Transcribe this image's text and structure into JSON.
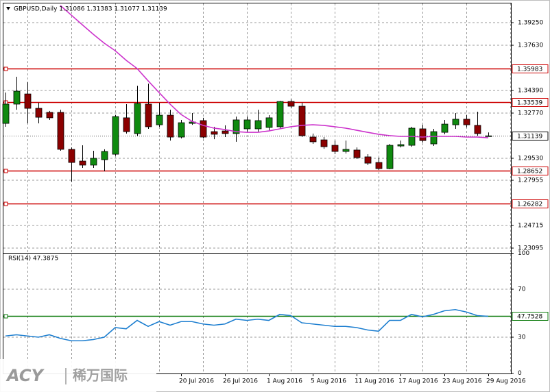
{
  "logo": {
    "brand": "ACY",
    "name": "稀万国际"
  },
  "chart_data": [
    {
      "type": "candlestick",
      "title": "GBPUSD,Daily  1.31086 1.31383 1.31077 1.31139",
      "categories": [
        null,
        null,
        null,
        null,
        null,
        null,
        null,
        null,
        null,
        null,
        null,
        null,
        null,
        null,
        null,
        null,
        "20 Jul 2016",
        null,
        null,
        null,
        "26 Jul 2016",
        null,
        null,
        null,
        "1 Aug 2016",
        null,
        null,
        null,
        "5 Aug 2016",
        null,
        null,
        null,
        "11 Aug 2016",
        null,
        null,
        null,
        "17 Aug 2016",
        null,
        null,
        null,
        "23 Aug 2016",
        null,
        null,
        null,
        "29 Aug 2016"
      ],
      "open": [
        1.3203,
        1.3341,
        1.3414,
        1.3311,
        1.3282,
        1.3282,
        1.3017,
        1.2933,
        1.2904,
        1.2943,
        1.2982,
        1.3243,
        1.313,
        1.3341,
        1.3193,
        1.3262,
        1.3105,
        1.3203,
        1.3223,
        1.3144,
        1.3149,
        1.313,
        1.3164,
        1.3164,
        1.3174,
        1.3179,
        1.336,
        1.3326,
        1.3105,
        1.3085,
        1.3046,
        1.3002,
        1.3012,
        1.2963,
        1.2923,
        1.2879,
        1.3041,
        1.3046,
        1.3164,
        1.3056,
        1.3139,
        1.3193,
        1.3233,
        1.3189,
        1.31086
      ],
      "high": [
        1.3424,
        1.3537,
        1.3498,
        1.3351,
        1.3292,
        1.3301,
        1.3031,
        1.3046,
        1.3007,
        1.3017,
        1.3262,
        1.3341,
        1.3473,
        1.3488,
        1.3351,
        1.3301,
        1.3228,
        1.3277,
        1.3243,
        1.3179,
        1.3189,
        1.3252,
        1.3252,
        1.3301,
        1.3262,
        1.3365,
        1.3375,
        1.3351,
        1.313,
        1.3105,
        1.308,
        1.308,
        1.3031,
        1.2982,
        1.2958,
        1.3056,
        1.308,
        1.3179,
        1.3193,
        1.3164,
        1.3228,
        1.3277,
        1.3262,
        1.3287,
        1.31383
      ],
      "low": [
        1.3179,
        1.3301,
        1.3203,
        1.3203,
        1.3228,
        1.3007,
        1.2786,
        1.2884,
        1.2884,
        1.286,
        1.2972,
        1.313,
        1.3115,
        1.3164,
        1.3179,
        1.308,
        1.3095,
        1.3193,
        1.3095,
        1.309,
        1.3105,
        1.3071,
        1.3144,
        1.3144,
        1.3154,
        1.3164,
        1.3311,
        1.3105,
        1.3056,
        1.3021,
        1.2982,
        1.2987,
        1.2948,
        1.2904,
        1.2869,
        1.2874,
        1.3031,
        1.3036,
        1.3066,
        1.3041,
        1.3125,
        1.3164,
        1.3174,
        1.3115,
        1.31077
      ],
      "close": [
        1.3341,
        1.3434,
        1.3311,
        1.3247,
        1.3243,
        1.3017,
        1.2923,
        1.2904,
        1.2953,
        1.3002,
        1.3252,
        1.3144,
        1.3346,
        1.3179,
        1.3262,
        1.3105,
        1.3208,
        1.3213,
        1.3105,
        1.3125,
        1.313,
        1.3228,
        1.3228,
        1.3223,
        1.3243,
        1.336,
        1.3326,
        1.3115,
        1.3071,
        1.3036,
        1.3002,
        1.3017,
        1.2958,
        1.2918,
        1.2879,
        1.3046,
        1.3051,
        1.3169,
        1.308,
        1.3144,
        1.3198,
        1.3233,
        1.3193,
        1.313,
        1.31139
      ],
      "up_color": "#0f8a0f",
      "down_color": "#8b0000",
      "series": [
        {
          "color": "#cc33cc",
          "values": [
            null,
            null,
            null,
            null,
            null,
            1.4048,
            1.3979,
            1.391,
            1.3842,
            1.3778,
            1.3724,
            1.3655,
            1.3596,
            1.3508,
            1.3424,
            1.3341,
            1.3267,
            1.3218,
            1.3189,
            1.3169,
            1.3159,
            1.3144,
            1.3139,
            1.3139,
            1.3149,
            1.3164,
            1.3179,
            1.3189,
            1.3193,
            1.3189,
            1.3179,
            1.3169,
            1.3154,
            1.3139,
            1.3125,
            1.3115,
            1.311,
            1.311,
            1.3105,
            1.311,
            1.311,
            1.311,
            1.3105,
            1.3105,
            1.31
          ]
        }
      ],
      "ylim": [
        1.228,
        1.4048
      ],
      "yticks": [
        {
          "value": 1.3925,
          "label": "1.39250"
        },
        {
          "value": 1.3763,
          "label": "1.37630"
        },
        {
          "value": 1.3439,
          "label": "1.34390"
        },
        {
          "value": 1.3277,
          "label": "1.32770"
        },
        {
          "value": 1.2953,
          "label": "1.29530"
        },
        1.27955,
        1.24715,
        1.23095
      ],
      "hlines": [
        {
          "value": 1.35983,
          "color": "#cc0000"
        },
        {
          "value": 1.33539,
          "color": "#cc0000"
        },
        {
          "value": 1.28652,
          "color": "#cc0000"
        },
        {
          "value": 1.26282,
          "color": "#cc0000"
        },
        {
          "value": 1.31139,
          "color": "#555555",
          "dash": true
        }
      ],
      "grid": true
    },
    {
      "type": "line",
      "title": "RSI(14) 47.3875",
      "color": "#1e7fd0",
      "values": [
        31,
        32,
        31,
        30,
        32,
        29,
        27,
        27,
        28,
        30,
        38,
        37,
        44,
        39,
        43,
        40,
        43,
        43,
        41,
        40,
        41,
        45,
        44,
        45,
        44,
        49,
        48,
        42,
        41,
        40,
        39,
        39,
        38,
        36,
        35,
        44,
        44,
        49,
        47,
        49,
        52,
        53,
        51,
        48,
        47.3875
      ],
      "ylim": [
        0,
        100
      ],
      "yticks": [
        0,
        30,
        70,
        100
      ],
      "hlines": [
        {
          "value": 47.7528,
          "color": "#0a7a0a"
        }
      ],
      "grid": true
    }
  ]
}
